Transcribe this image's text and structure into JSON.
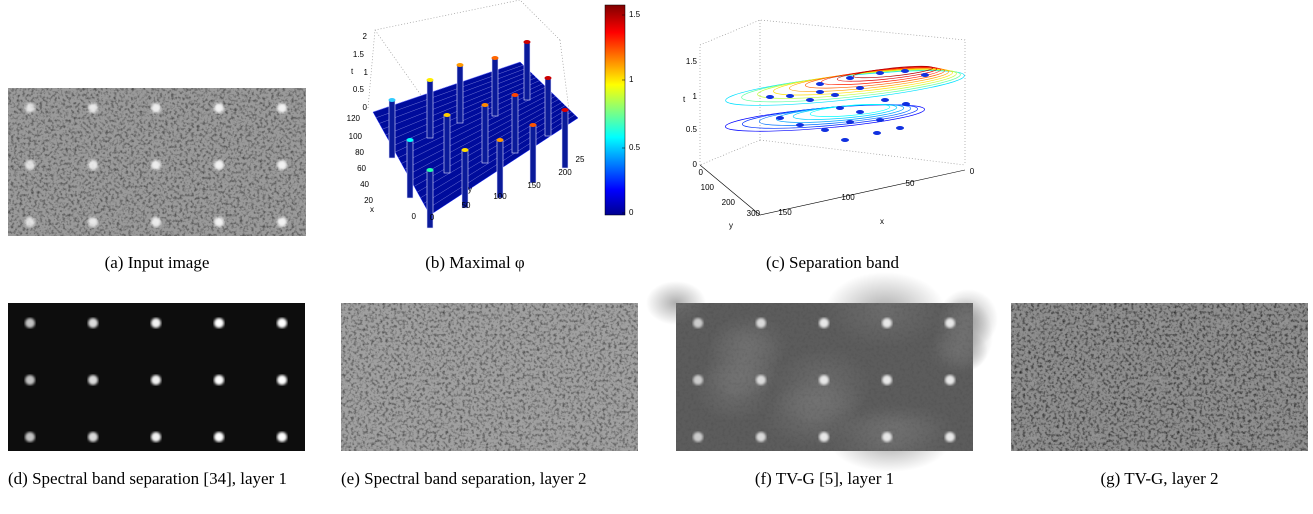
{
  "figures": [
    {
      "caption": "(a) Input image"
    },
    {
      "caption": "(b) Maximal φ",
      "plot": {
        "z_label": "t",
        "zticks": [
          0,
          0.5,
          1,
          1.5,
          2
        ],
        "x_label": "x",
        "xticks": [
          0,
          20,
          40,
          60,
          80,
          100,
          120
        ],
        "y_label": "y",
        "yticks": [
          0,
          50,
          100,
          150,
          200,
          "25"
        ],
        "colorbar_ticks": [
          0,
          0.5,
          1,
          1.5
        ]
      }
    },
    {
      "caption": "(c) Separation band",
      "plot": {
        "z_label": "t",
        "zticks": [
          0,
          0.5,
          1,
          1.5
        ],
        "y_label": "y",
        "yticks": [
          0,
          100,
          200,
          300
        ],
        "x_label": "x",
        "xticks": [
          150,
          100,
          50,
          0
        ]
      }
    },
    {
      "caption": "(d) Spectral band separation [34], layer 1"
    },
    {
      "caption": "(e) Spectral band separation, layer 2"
    },
    {
      "caption": "(f) TV-G [5], layer 1"
    },
    {
      "caption": "(g) TV-G, layer 2"
    }
  ]
}
